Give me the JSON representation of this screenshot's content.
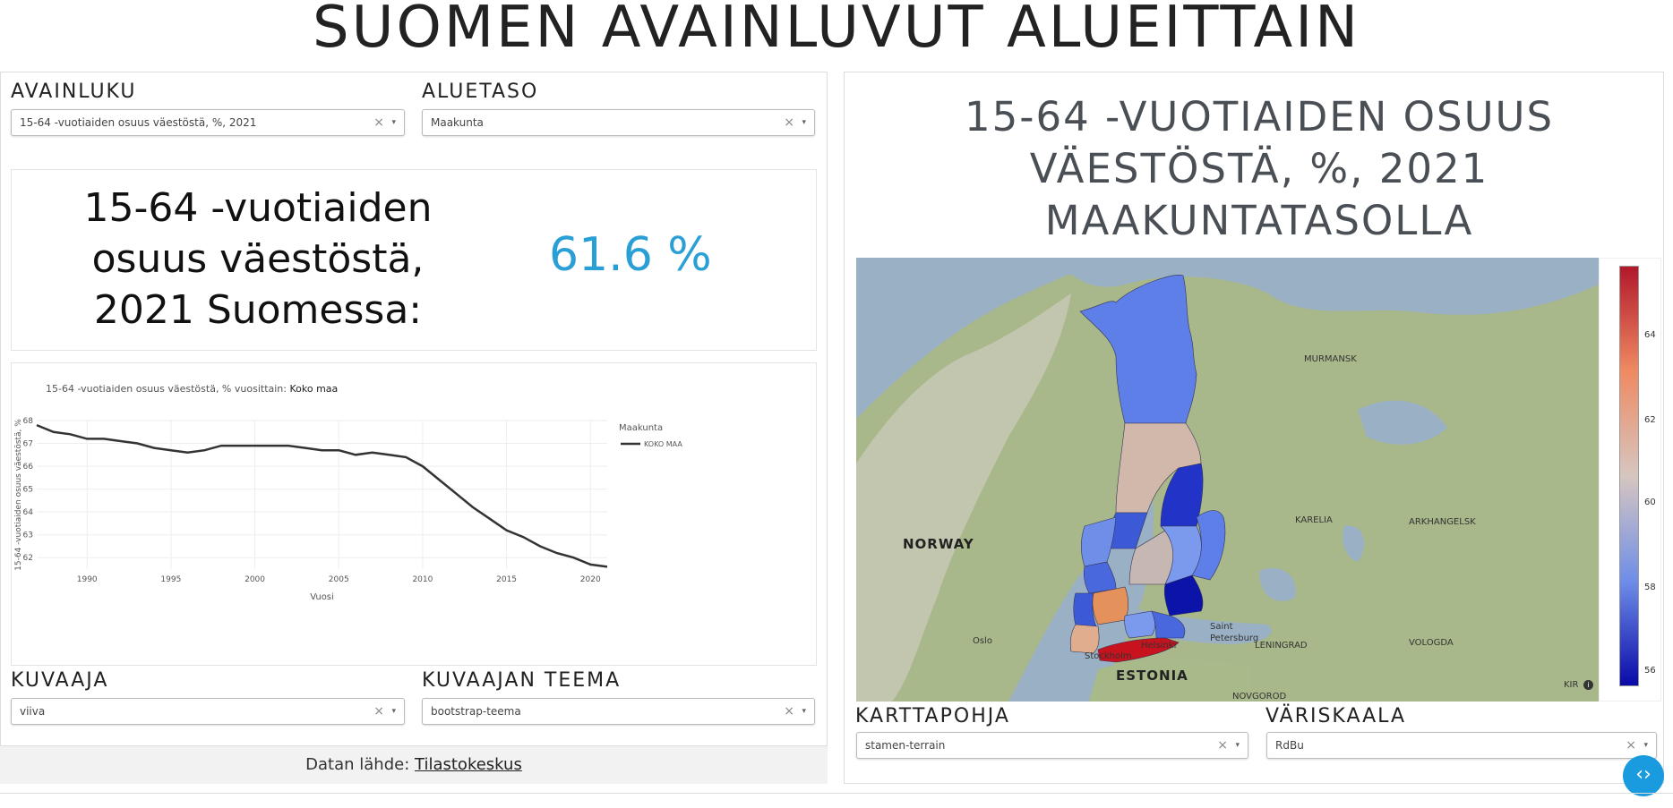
{
  "title": "SUOMEN AVAINLUVUT ALUEITTAIN",
  "controls": {
    "avainluku_label": "AVAINLUKU",
    "avainluku_value": "15-64 -vuotiaiden osuus väestöstä, %, 2021",
    "aluetaso_label": "ALUETASO",
    "aluetaso_value": "Maakunta",
    "kuvaaja_label": "KUVAAJA",
    "kuvaaja_value": "viiva",
    "teema_label": "KUVAAJAN TEEMA",
    "teema_value": "bootstrap-teema",
    "karttapohja_label": "KARTTAPOHJA",
    "karttapohja_value": "stamen-terrain",
    "variskaala_label": "VÄRISKAALA",
    "variskaala_value": "RdBu",
    "clear_symbol": "×",
    "caret_symbol": "▾"
  },
  "kpi": {
    "text": "15-64 -vuotiaiden osuus väestöstä, 2021 Suomessa:",
    "value": "61.6 %"
  },
  "chart_data": {
    "type": "line",
    "title": "15-64 -vuotiaiden osuus väestöstä, % vuosittain:",
    "title_bold": "Koko maa",
    "xlabel": "Vuosi",
    "ylabel": "15-64 -vuotiaiden osuus väestöstä, %",
    "legend_title": "Maakunta",
    "legend_placement": "top-right",
    "xlim": [
      1987,
      2021
    ],
    "ylim": [
      61.5,
      68
    ],
    "xticks": [
      1990,
      1995,
      2000,
      2005,
      2010,
      2015,
      2020
    ],
    "yticks": [
      62,
      63,
      64,
      65,
      66,
      67,
      68
    ],
    "grid": true,
    "series": [
      {
        "name": "KOKO MAA",
        "color": "#333333",
        "x": [
          1987,
          1988,
          1989,
          1990,
          1991,
          1992,
          1993,
          1994,
          1995,
          1996,
          1997,
          1998,
          1999,
          2000,
          2001,
          2002,
          2003,
          2004,
          2005,
          2006,
          2007,
          2008,
          2009,
          2010,
          2011,
          2012,
          2013,
          2014,
          2015,
          2016,
          2017,
          2018,
          2019,
          2020,
          2021
        ],
        "y": [
          67.8,
          67.5,
          67.4,
          67.2,
          67.2,
          67.1,
          67.0,
          66.8,
          66.7,
          66.6,
          66.7,
          66.9,
          66.9,
          66.9,
          66.9,
          66.9,
          66.8,
          66.7,
          66.7,
          66.5,
          66.6,
          66.5,
          66.4,
          66.0,
          65.4,
          64.8,
          64.2,
          63.7,
          63.2,
          62.9,
          62.5,
          62.2,
          62.0,
          61.7,
          61.6
        ]
      }
    ]
  },
  "map": {
    "title": "15-64 -VUOTIAIDEN OSUUS VÄESTÖSTÄ, %, 2021 MAAKUNTATASOLLA",
    "labels": {
      "norway": "NORWAY",
      "estonia": "ESTONIA",
      "murmansk": "MURMANSK",
      "karelia": "KARELIA",
      "arkhangelsk": "ARKHANGELSK",
      "saint_petersburg": "Saint Petersburg",
      "leningrad": "LENINGRAD",
      "vologda": "VOLOGDA",
      "oslo": "Oslo",
      "stockholm": "Stockholm",
      "helsinki": "Helsinki",
      "novgorod": "NOVGOROD",
      "kir": "KIR"
    },
    "colorbar": {
      "ticks": [
        "64",
        "62",
        "60",
        "58",
        "56"
      ],
      "colors": [
        "#b2182b",
        "#ef8a62",
        "#d6c6c0",
        "#6f8ee8",
        "#0a0aa8"
      ]
    }
  },
  "footer": {
    "source_label": "Datan lähde:",
    "source_link": "Tilastokeskus"
  },
  "fab_icon": "‹›"
}
